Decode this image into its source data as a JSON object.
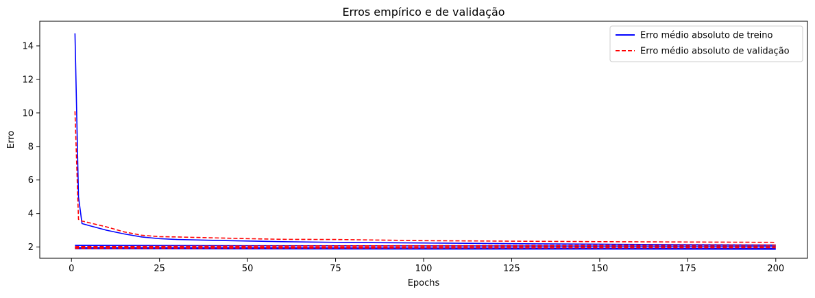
{
  "chart_data": {
    "type": "line",
    "title": "Erros empírico e de validação",
    "xlabel": "Epochs",
    "ylabel": "Erro",
    "xlim": [
      -9,
      209
    ],
    "ylim": [
      1.33,
      15.47
    ],
    "x_ticks": [
      0,
      25,
      50,
      75,
      100,
      125,
      150,
      175,
      200
    ],
    "y_ticks": [
      2,
      4,
      6,
      8,
      10,
      12,
      14
    ],
    "grid": false,
    "legend_position": "top-right",
    "series": [
      {
        "name": "Erro médio absoluto de treino",
        "color": "#0000ff",
        "style": "solid",
        "points": [
          [
            1,
            14.75
          ],
          [
            2,
            5.0
          ],
          [
            3,
            3.4
          ],
          [
            5,
            3.28
          ],
          [
            10,
            3.0
          ],
          [
            15,
            2.78
          ],
          [
            20,
            2.6
          ],
          [
            25,
            2.5
          ],
          [
            30,
            2.45
          ],
          [
            40,
            2.4
          ],
          [
            50,
            2.36
          ],
          [
            60,
            2.32
          ],
          [
            75,
            2.28
          ],
          [
            100,
            2.24
          ],
          [
            125,
            2.2
          ],
          [
            150,
            2.17
          ],
          [
            175,
            2.14
          ],
          [
            200,
            2.12
          ]
        ]
      },
      {
        "name": "Erro médio absoluto de validação",
        "color": "#ff0000",
        "style": "dashed",
        "points": [
          [
            1,
            10.1
          ],
          [
            2,
            3.65
          ],
          [
            3,
            3.55
          ],
          [
            5,
            3.45
          ],
          [
            10,
            3.2
          ],
          [
            15,
            2.9
          ],
          [
            20,
            2.7
          ],
          [
            25,
            2.62
          ],
          [
            30,
            2.6
          ],
          [
            40,
            2.55
          ],
          [
            50,
            2.5
          ],
          [
            60,
            2.46
          ],
          [
            75,
            2.45
          ],
          [
            100,
            2.38
          ],
          [
            125,
            2.35
          ],
          [
            150,
            2.32
          ],
          [
            175,
            2.3
          ],
          [
            200,
            2.28
          ]
        ]
      },
      {
        "name": "",
        "color": "#0000ff",
        "style": "solid",
        "points": [
          [
            1,
            2.1
          ],
          [
            50,
            2.08
          ],
          [
            100,
            2.07
          ],
          [
            150,
            2.06
          ],
          [
            200,
            2.05
          ]
        ]
      },
      {
        "name": "",
        "color": "#0000ff",
        "style": "solid",
        "points": [
          [
            1,
            1.96
          ],
          [
            50,
            1.95
          ],
          [
            100,
            1.94
          ],
          [
            150,
            1.93
          ],
          [
            200,
            1.93
          ]
        ]
      },
      {
        "name": "",
        "color": "#0000ff",
        "style": "solid",
        "points": [
          [
            1,
            1.9
          ],
          [
            50,
            1.89
          ],
          [
            100,
            1.88
          ],
          [
            150,
            1.88
          ],
          [
            200,
            1.87
          ]
        ]
      },
      {
        "name": "",
        "color": "#ff0000",
        "style": "dashed",
        "points": [
          [
            1,
            2.03
          ],
          [
            50,
            2.06
          ],
          [
            100,
            2.08
          ],
          [
            150,
            2.1
          ],
          [
            200,
            2.12
          ]
        ]
      },
      {
        "name": "",
        "color": "#ff0000",
        "style": "dashed",
        "points": [
          [
            1,
            1.98
          ],
          [
            50,
            1.99
          ],
          [
            100,
            2.0
          ],
          [
            150,
            2.01
          ],
          [
            200,
            2.02
          ]
        ]
      },
      {
        "name": "",
        "color": "#ff0000",
        "style": "dashed",
        "points": [
          [
            1,
            1.92
          ],
          [
            50,
            1.93
          ],
          [
            100,
            1.94
          ],
          [
            150,
            1.95
          ],
          [
            200,
            1.96
          ]
        ]
      }
    ]
  }
}
